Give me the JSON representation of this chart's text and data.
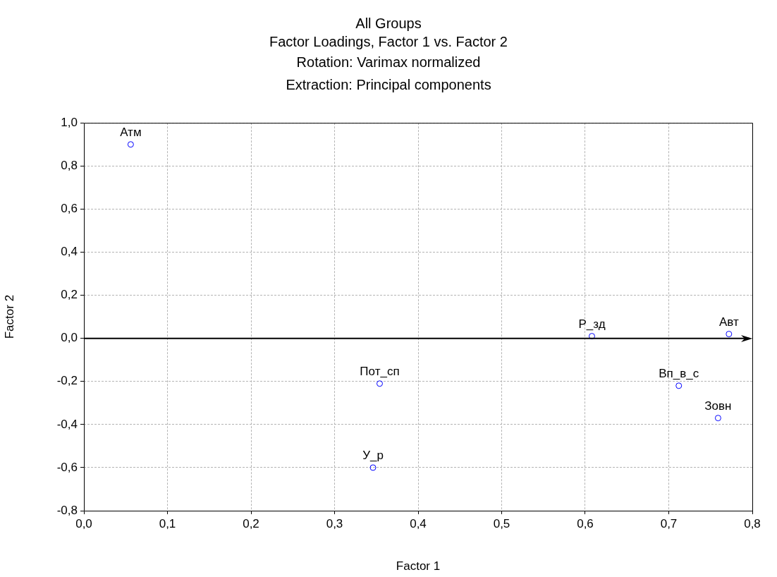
{
  "chart_data": {
    "type": "scatter",
    "title": "All Groups",
    "subtitle": "Factor Loadings, Factor 1 vs. Factor 2",
    "annotations": [
      "Rotation: Varimax normalized",
      "Extraction: Principal components",
      {
        "text": "Атм",
        "x": 0.056,
        "y": 0.9
      },
      {
        "text": "Р_зд",
        "x": 0.608,
        "y": 0.01
      },
      {
        "text": "Авт",
        "x": 0.772,
        "y": 0.02
      },
      {
        "text": "Пот_сп",
        "x": 0.354,
        "y": -0.21
      },
      {
        "text": "Вп_в_с",
        "x": 0.712,
        "y": -0.22
      },
      {
        "text": "Зовн",
        "x": 0.759,
        "y": -0.37
      },
      {
        "text": "У_р",
        "x": 0.346,
        "y": -0.6
      }
    ],
    "xlabel": "Factor 1",
    "ylabel": "Factor 2",
    "series": [
      {
        "color": "#0000ff",
        "x": [
          0.056,
          0.608,
          0.772,
          0.354,
          0.712,
          0.759,
          0.346
        ],
        "values": [
          0.9,
          0.01,
          0.02,
          -0.21,
          -0.22,
          -0.37,
          -0.6
        ]
      }
    ],
    "xlim": [
      0,
      0.8
    ],
    "ylim": [
      -0.8,
      1
    ],
    "xticks": [
      {
        "value": 0,
        "label": "0,0"
      },
      {
        "value": 0.1,
        "label": "0,1"
      },
      {
        "value": 0.2,
        "label": "0,2"
      },
      {
        "value": 0.3,
        "label": "0,3"
      },
      {
        "value": 0.4,
        "label": "0,4"
      },
      {
        "value": 0.5,
        "label": "0,5"
      },
      {
        "value": 0.6,
        "label": "0,6"
      },
      {
        "value": 0.7,
        "label": "0,7"
      },
      {
        "value": 0.8,
        "label": "0,8"
      }
    ],
    "yticks": [
      {
        "value": -0.8,
        "label": "-0,8"
      },
      {
        "value": -0.6,
        "label": "-0,6"
      },
      {
        "value": -0.4,
        "label": "-0,4"
      },
      {
        "value": -0.2,
        "label": "-0,2"
      },
      {
        "value": 0,
        "label": "0,0"
      },
      {
        "value": 0.2,
        "label": "0,2"
      },
      {
        "value": 0.4,
        "label": "0,4"
      },
      {
        "value": 0.6,
        "label": "0,6"
      },
      {
        "value": 0.8,
        "label": "0,8"
      },
      {
        "value": 1,
        "label": "1,0"
      }
    ],
    "ref_lines": [
      {
        "axis": "y",
        "value": 0,
        "color": "#000000"
      }
    ],
    "grid": true,
    "marker": "circle",
    "legend": false
  }
}
